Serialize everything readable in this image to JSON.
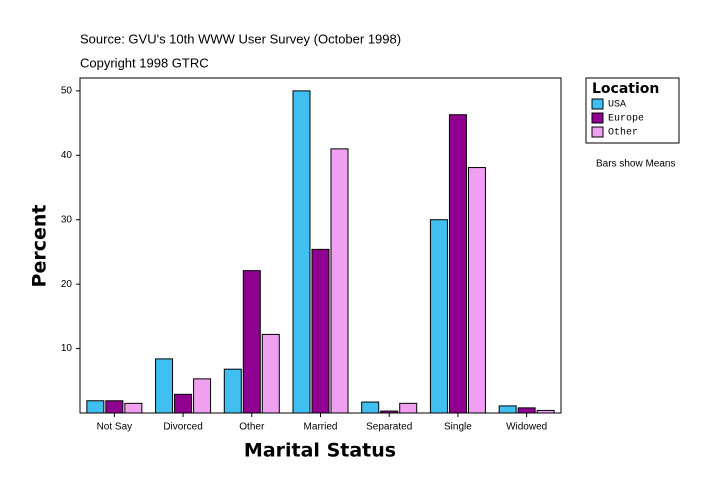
{
  "chart_data": {
    "type": "bar",
    "title": "Source: GVU's 10th WWW User Survey (October 1998)",
    "subtitle": "Copyright 1998 GTRC",
    "xlabel": "Marital Status",
    "ylabel": "Percent",
    "legend_title": "Location",
    "annotation": "Bars show Means",
    "categories": [
      "Not Say",
      "Divorced",
      "Other",
      "Married",
      "Separated",
      "Single",
      "Widowed"
    ],
    "series": [
      {
        "name": "USA",
        "color": "#40c0f0",
        "values": [
          1.9,
          8.4,
          6.8,
          50.0,
          1.7,
          30.0,
          1.1
        ]
      },
      {
        "name": "Europe",
        "color": "#900090",
        "values": [
          1.9,
          2.9,
          22.1,
          25.4,
          0.3,
          46.3,
          0.8
        ]
      },
      {
        "name": "Other",
        "color": "#f0a0f0",
        "values": [
          1.5,
          5.3,
          12.2,
          41.0,
          1.5,
          38.1,
          0.4
        ]
      }
    ],
    "ylim": [
      0,
      52
    ],
    "yticks": [
      10,
      20,
      30,
      40,
      50
    ]
  }
}
